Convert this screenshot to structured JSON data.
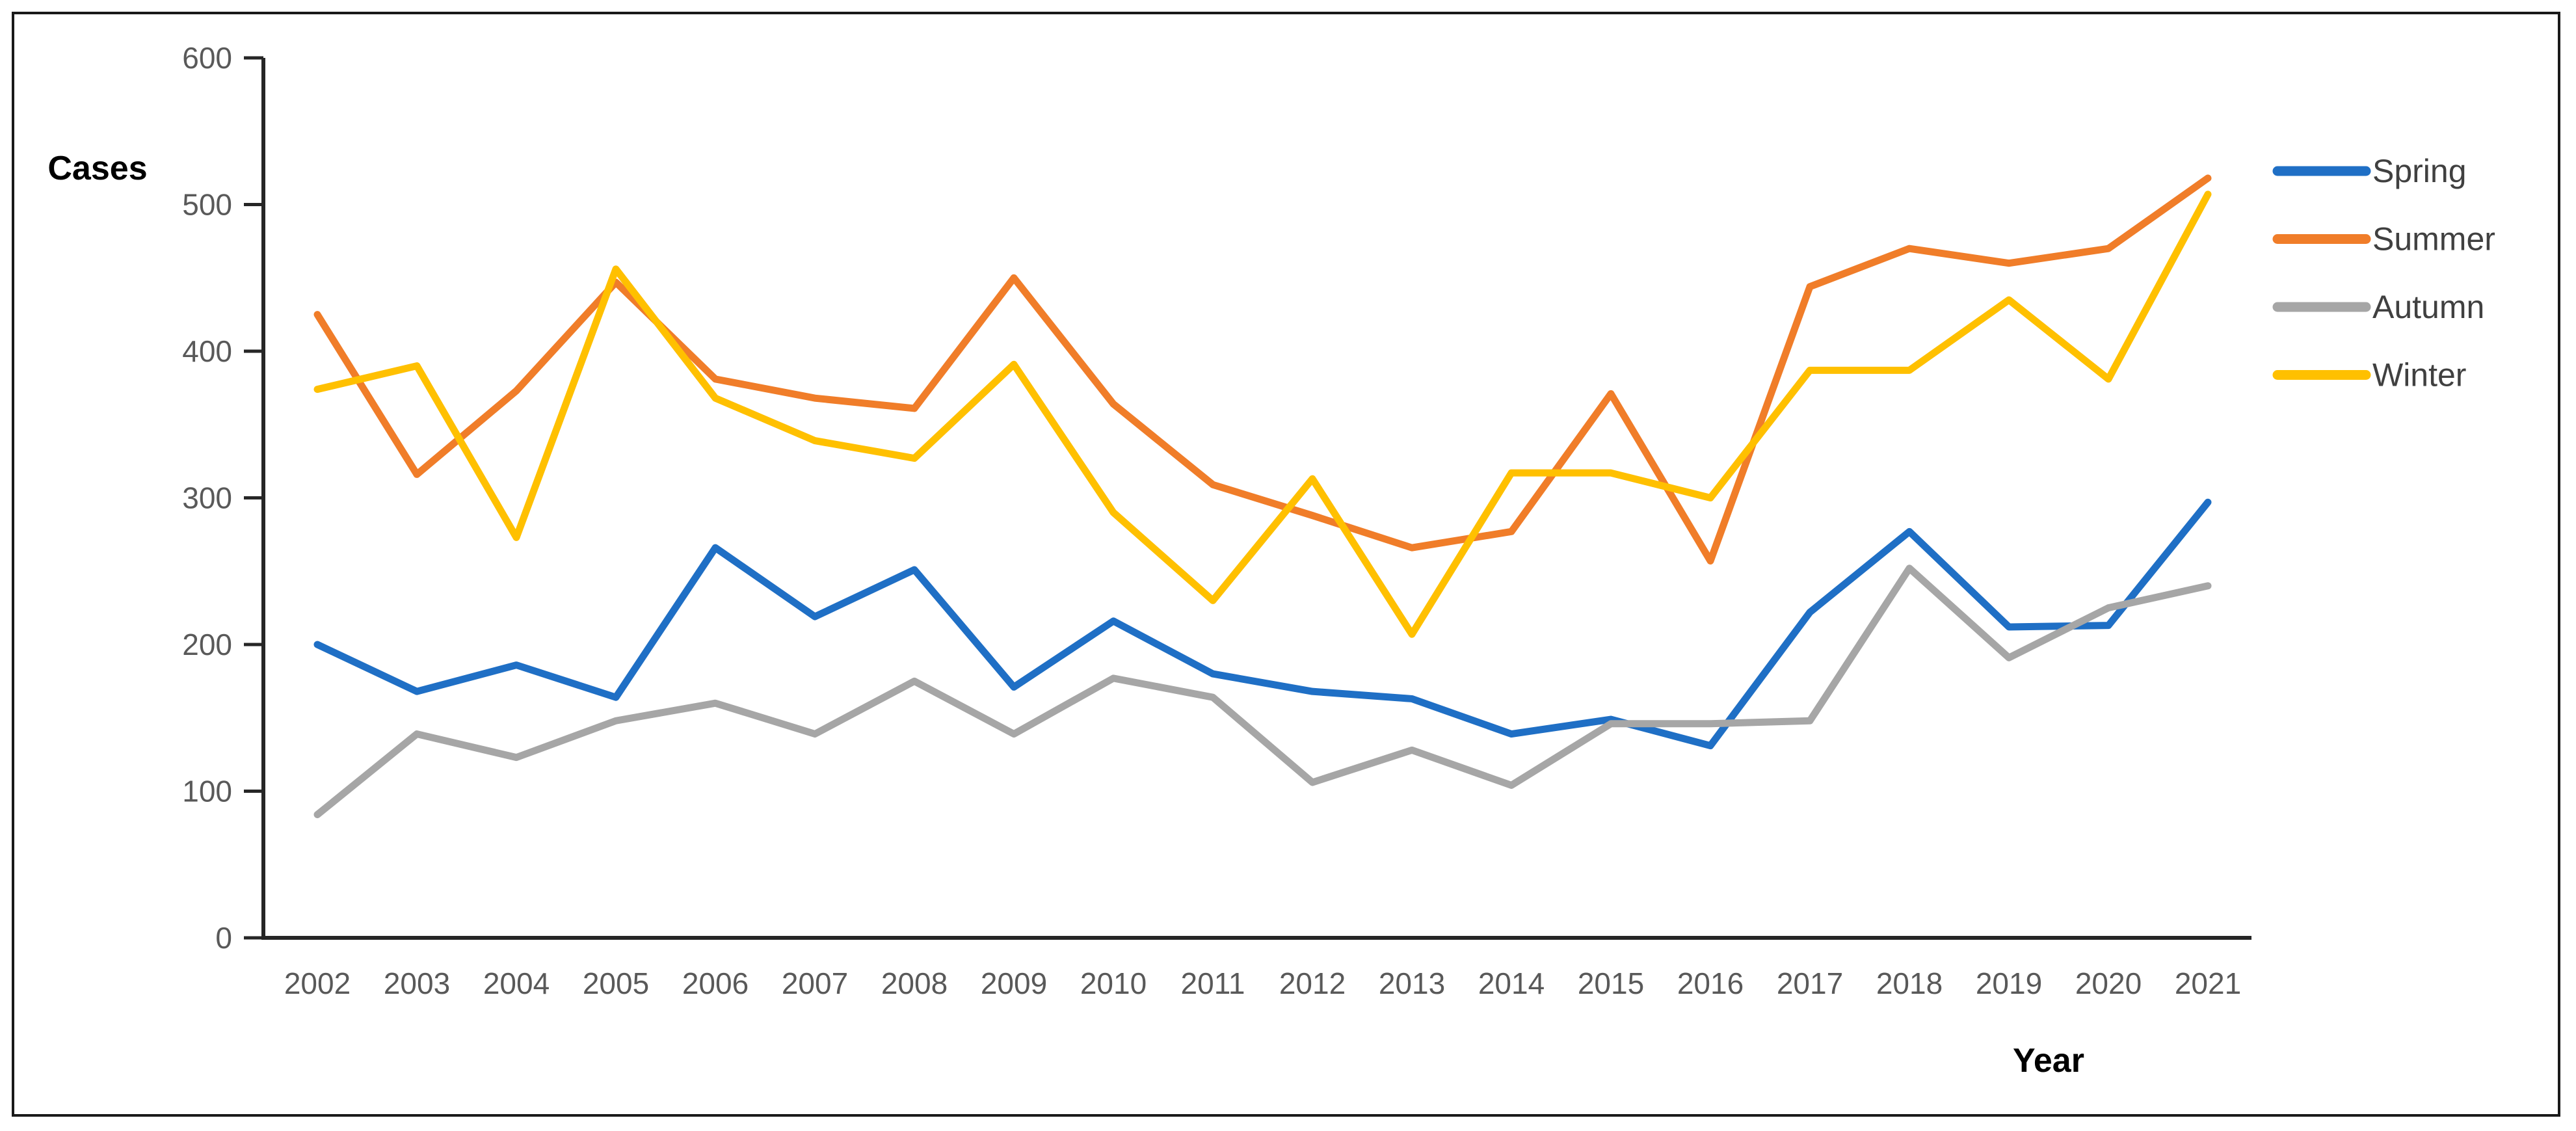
{
  "chart_data": {
    "type": "line",
    "title": "",
    "xlabel": "Year",
    "ylabel": "Cases",
    "categories": [
      "2002",
      "2003",
      "2004",
      "2005",
      "2006",
      "2007",
      "2008",
      "2009",
      "2010",
      "2011",
      "2012",
      "2013",
      "2014",
      "2015",
      "2016",
      "2017",
      "2018",
      "2019",
      "2020",
      "2021"
    ],
    "series": [
      {
        "name": "Spring",
        "color": "#1F6FC5",
        "values": [
          200,
          168,
          186,
          164,
          266,
          219,
          251,
          171,
          216,
          180,
          168,
          163,
          139,
          149,
          131,
          222,
          277,
          212,
          213,
          297
        ]
      },
      {
        "name": "Summer",
        "color": "#F07D29",
        "values": [
          425,
          316,
          373,
          447,
          381,
          368,
          361,
          450,
          364,
          309,
          288,
          266,
          277,
          371,
          257,
          444,
          470,
          460,
          470,
          518
        ]
      },
      {
        "name": "Autumn",
        "color": "#A6A6A6",
        "values": [
          84,
          139,
          123,
          148,
          160,
          139,
          175,
          139,
          177,
          164,
          106,
          128,
          104,
          146,
          146,
          148,
          252,
          191,
          225,
          240
        ]
      },
      {
        "name": "Winter",
        "color": "#FFC000",
        "values": [
          374,
          390,
          273,
          456,
          368,
          339,
          327,
          391,
          290,
          230,
          313,
          207,
          317,
          317,
          300,
          387,
          387,
          435,
          381,
          507
        ]
      }
    ],
    "ylim": [
      0,
      600
    ],
    "yticks": [
      0,
      100,
      200,
      300,
      400,
      500,
      600
    ],
    "grid": false,
    "legend_position": "right",
    "axis_color": "#262626",
    "tick_label_color": "#595959",
    "legend_text_color": "#404040"
  }
}
